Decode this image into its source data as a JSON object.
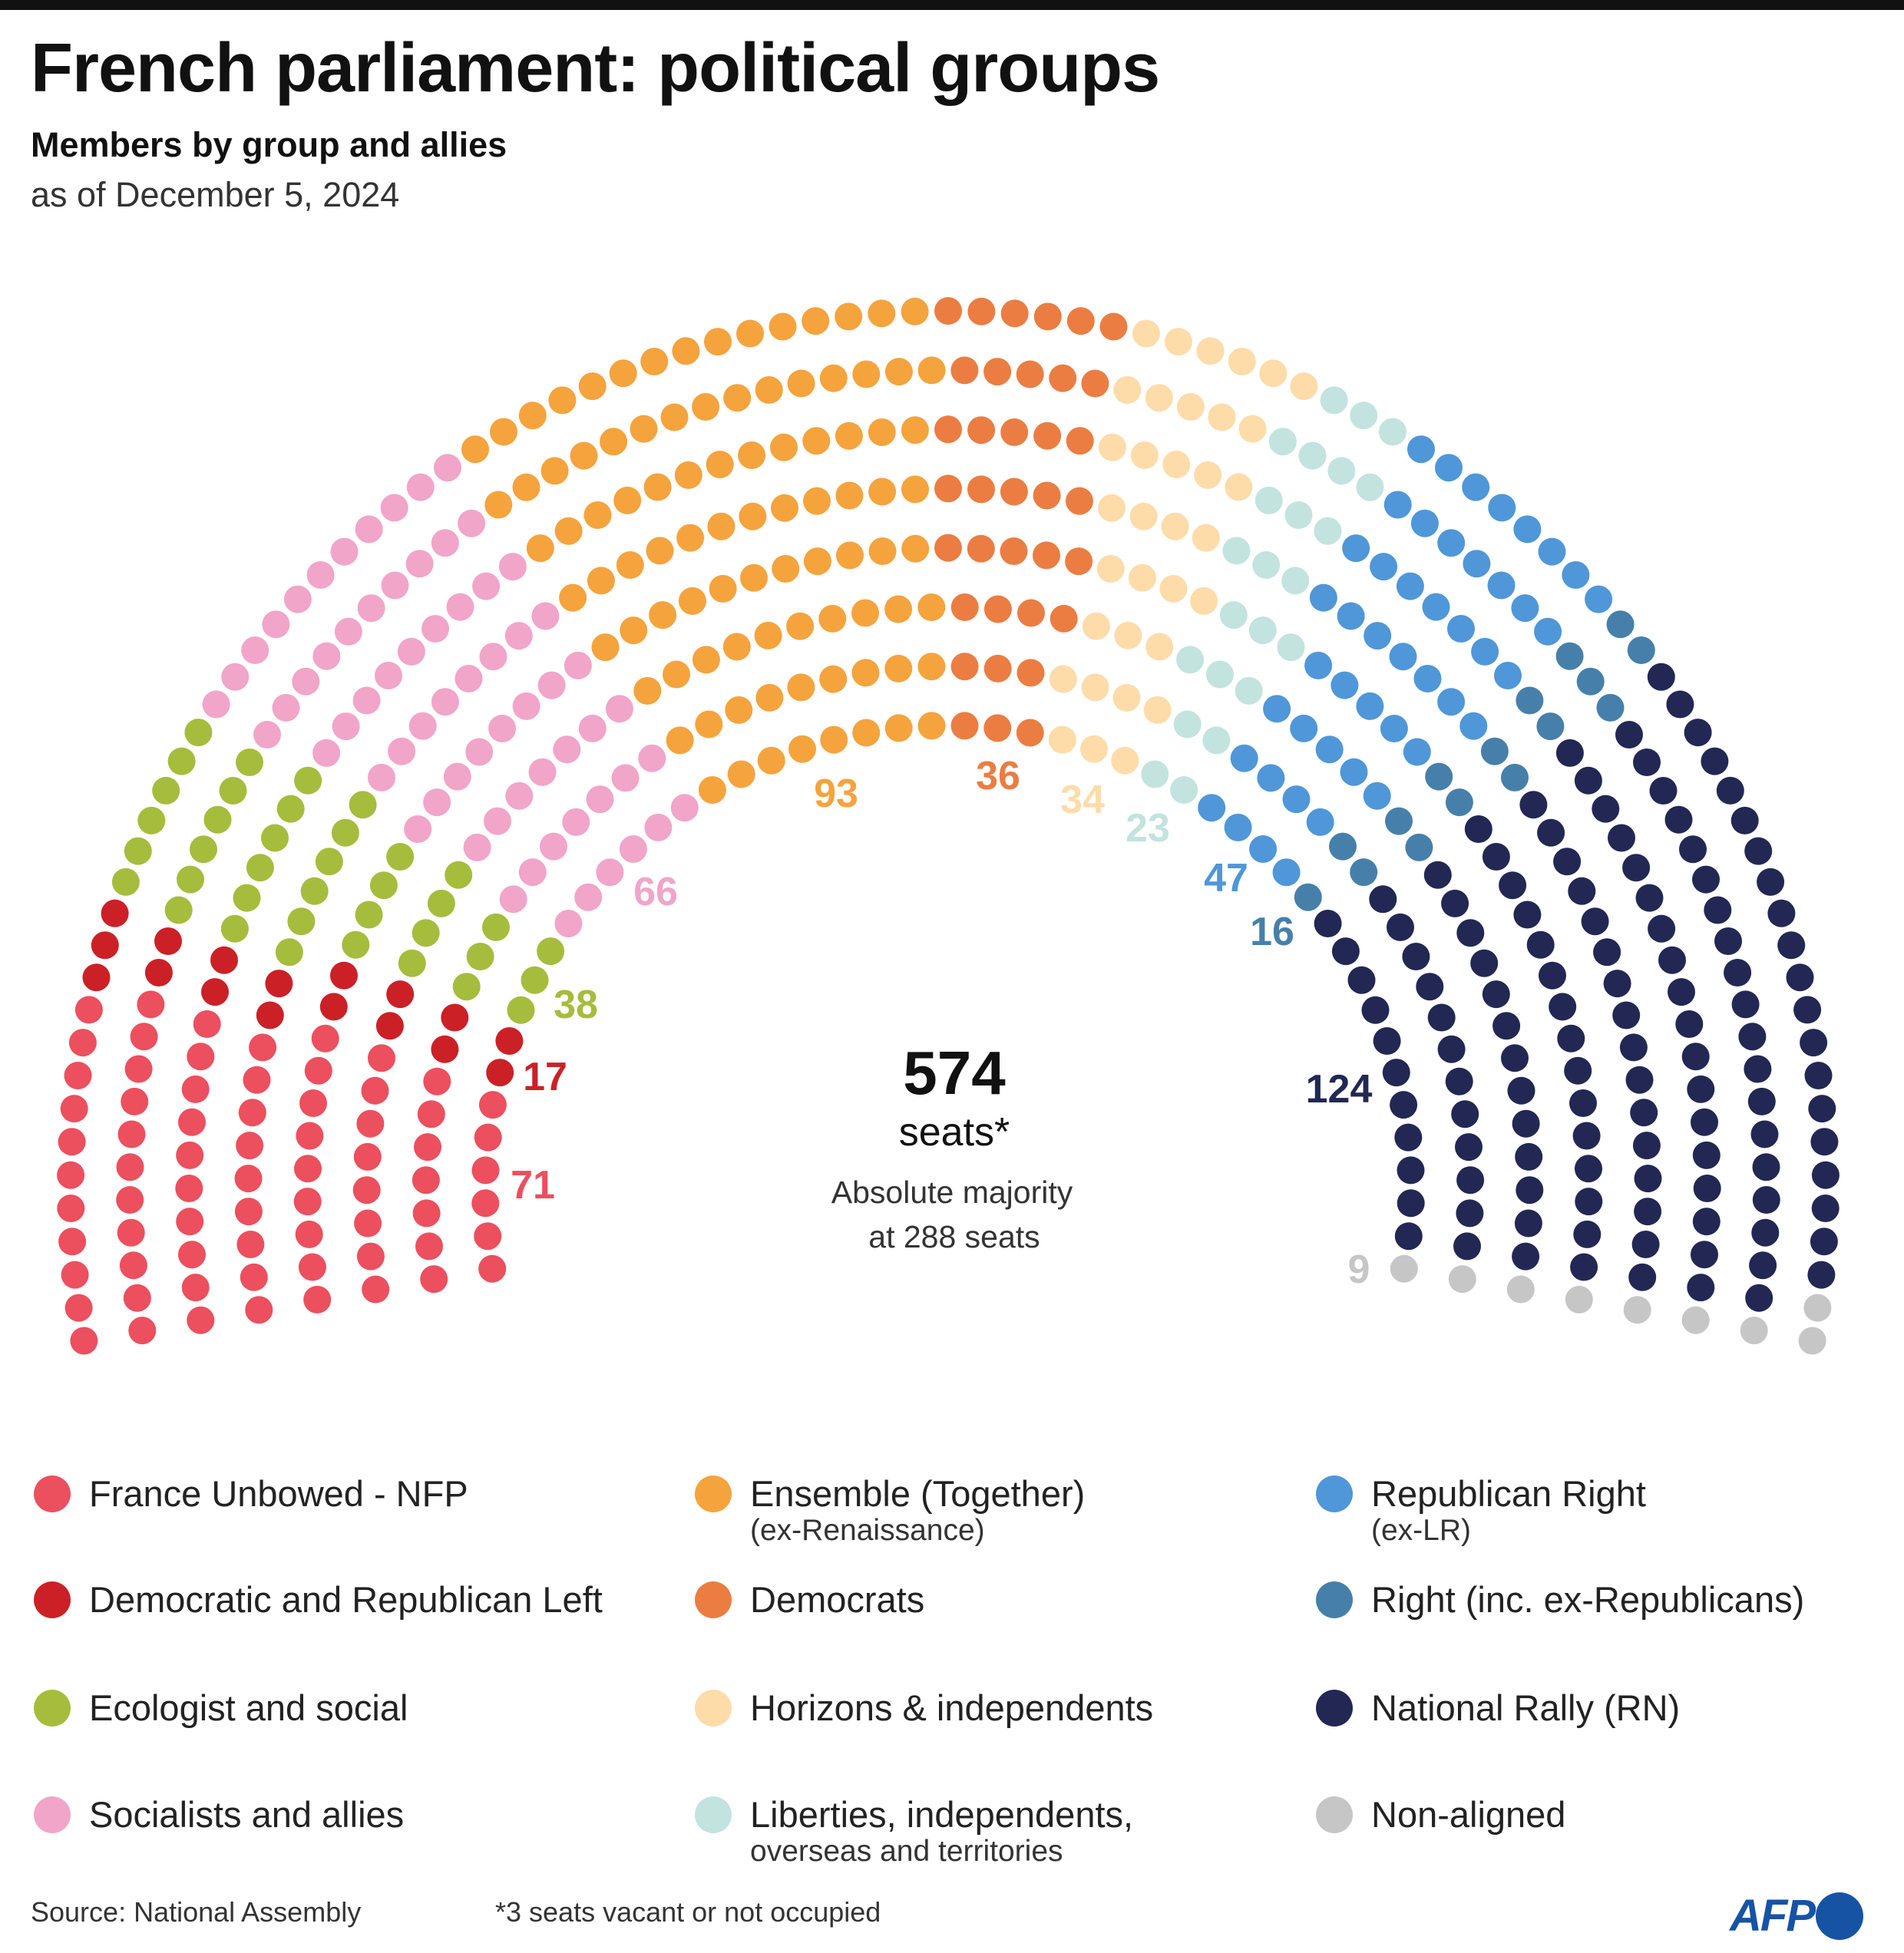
{
  "header": {
    "title": "French parliament: political groups",
    "subtitle": "Members by group and allies",
    "date": "as of December 5, 2024"
  },
  "chart_data": {
    "type": "pie",
    "title": "French parliament: political groups",
    "subtitle": "Members by group and allies",
    "total": 574,
    "total_value": "574",
    "total_label": "seats*",
    "majority_line1": "Absolute majority",
    "majority_line2": "at 288 seats",
    "majority": 288,
    "categories": [
      "France Unbowed - NFP",
      "Democratic and Republican Left",
      "Ecologist and social",
      "Socialists and allies",
      "Ensemble (Together)",
      "Democrats",
      "Horizons & independents",
      "Liberties, independents, overseas and territories",
      "Republican Right",
      "Right (inc. ex-Republicans)",
      "National Rally (RN)",
      "Non-aligned"
    ],
    "groups": [
      {
        "name": "France Unbowed - NFP",
        "sub": "",
        "seats": 71,
        "label": "71",
        "color": "#ec4f5e"
      },
      {
        "name": "Democratic and Republican Left",
        "sub": "",
        "seats": 17,
        "label": "17",
        "color": "#cc2027"
      },
      {
        "name": "Ecologist and social",
        "sub": "",
        "seats": 38,
        "label": "38",
        "color": "#a6bc3d"
      },
      {
        "name": "Socialists and allies",
        "sub": "",
        "seats": 66,
        "label": "66",
        "color": "#f1a5c9"
      },
      {
        "name": "Ensemble (Together)",
        "sub": "(ex-Renaissance)",
        "seats": 93,
        "label": "93",
        "color": "#f5a33d"
      },
      {
        "name": "Democrats",
        "sub": "",
        "seats": 36,
        "label": "36",
        "color": "#eb7d42"
      },
      {
        "name": "Horizons & independents",
        "sub": "",
        "seats": 34,
        "label": "34",
        "color": "#fddcaa"
      },
      {
        "name": "Liberties, independents,",
        "sub": "overseas and territories",
        "seats": 23,
        "label": "23",
        "color": "#c3e3df"
      },
      {
        "name": "Republican Right",
        "sub": "(ex-LR)",
        "seats": 47,
        "label": "47",
        "color": "#4f97d8"
      },
      {
        "name": "Right (inc. ex-Republicans)",
        "sub": "",
        "seats": 16,
        "label": "16",
        "color": "#4680aa"
      },
      {
        "name": "National Rally (RN)",
        "sub": "",
        "seats": 124,
        "label": "124",
        "color": "#222853"
      },
      {
        "name": "Non-aligned",
        "sub": "",
        "seats": 9,
        "label": "9",
        "color": "#c6c6c6"
      }
    ],
    "value_label_colors": [
      "#ec4f5e",
      "#cc2027",
      "#a6bc3d",
      "#f1a5c9",
      "#f5a33d",
      "#eb7d42",
      "#fddcaa",
      "#c3e3df",
      "#4f97d8",
      "#4680aa",
      "#222853",
      "#c6c6c6"
    ],
    "legend_placement": "bottom"
  },
  "footer": {
    "source": "Source: National Assembly",
    "note": "*3 seats vacant or not occupied",
    "logo": "AFP"
  }
}
